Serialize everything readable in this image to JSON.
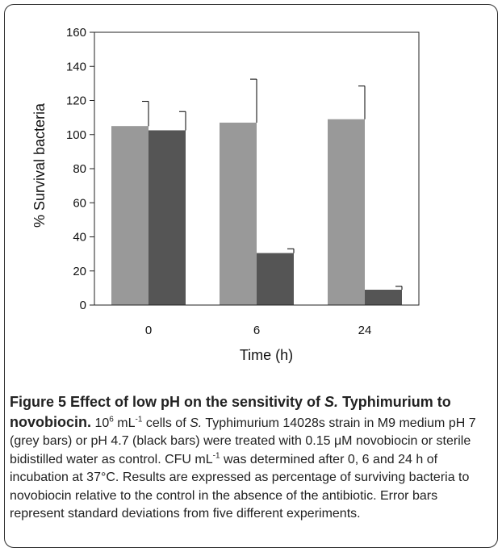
{
  "chart_data": {
    "type": "bar",
    "title": "",
    "xlabel": "Time (h)",
    "ylabel": "% Survival bacteria",
    "ylim": [
      0,
      160
    ],
    "yticks": [
      0,
      20,
      40,
      60,
      80,
      100,
      120,
      140,
      160
    ],
    "categories": [
      "0",
      "6",
      "24"
    ],
    "series": [
      {
        "label": "pH 7",
        "color": "#999999",
        "values": [
          105,
          107,
          109
        ],
        "errors": [
          14.5,
          25.5,
          19.5
        ]
      },
      {
        "label": "pH 4.7",
        "color": "#555555",
        "values": [
          102.5,
          30.5,
          9
        ],
        "errors": [
          11,
          2.5,
          2
        ]
      }
    ]
  },
  "caption": {
    "figure_label": "Figure 5",
    "title_a": " Effect of low pH on the sensitivity of ",
    "title_organism": "S.",
    "title_b": " Typhimurium to novobiocin.",
    "t01": " 10",
    "t02": "6",
    "t03": " mL",
    "t04": "-1",
    "t05": " cells of ",
    "t06": "S.",
    "t07": " Typhimurium 14028s strain in M9 medium pH 7 (grey bars) or pH 4.7 (black bars) were treated with 0.15 μM novobiocin or sterile bidistilled water as control. CFU mL",
    "t08": "-1",
    "t09": " was determined after 0, 6 and 24 h of incubation at 37°C. Results are expressed as percentage of surviving bacteria to novobiocin relative to the control in the absence of the antibiotic. Error bars represent standard deviations from five different experiments."
  }
}
